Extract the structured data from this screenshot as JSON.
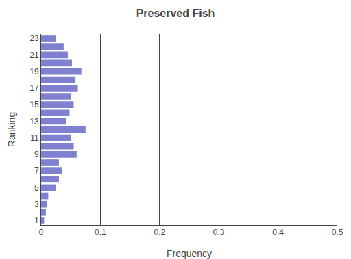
{
  "chart_data": {
    "type": "bar",
    "orientation": "horizontal",
    "title": "Preserved Fish",
    "xlabel": "Frequency",
    "ylabel": "Ranking",
    "categories": [
      "1",
      null,
      "3",
      null,
      "5",
      null,
      "7",
      null,
      "9",
      null,
      "11",
      null,
      "13",
      null,
      "15",
      null,
      "17",
      null,
      "19",
      null,
      "21",
      null,
      "23"
    ],
    "values": [
      0.005,
      0.008,
      0.01,
      0.012,
      0.025,
      0.03,
      0.035,
      0.03,
      0.06,
      0.055,
      0.05,
      0.075,
      0.042,
      0.048,
      0.055,
      0.05,
      0.062,
      0.058,
      0.068,
      0.052,
      0.045,
      0.038,
      0.025
    ],
    "color": "#8080d0",
    "xlim": [
      0,
      0.5
    ],
    "xticks": [
      0,
      0.1,
      0.2,
      0.3,
      0.4,
      0.5
    ],
    "grid": true
  }
}
